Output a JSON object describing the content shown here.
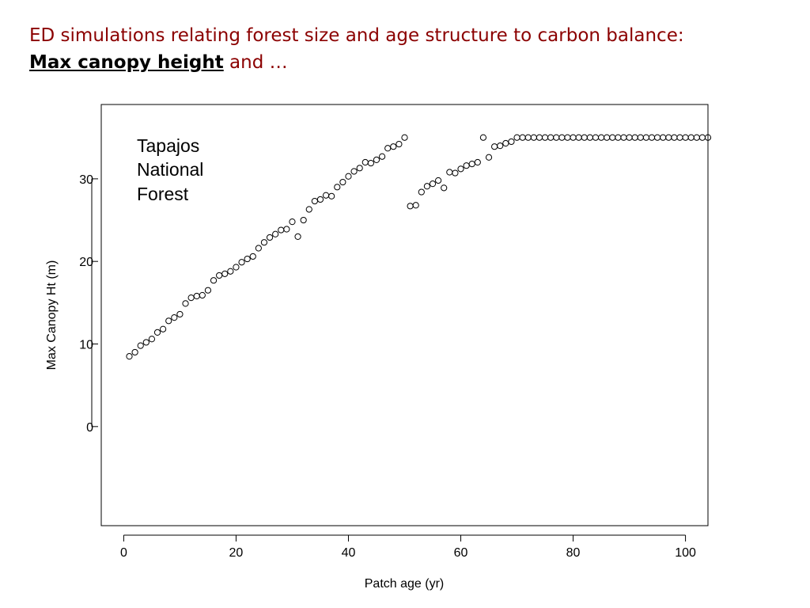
{
  "slide": {
    "title_line1": "ED simulations relating forest size and age structure to carbon balance:",
    "title_emph": "Max canopy height",
    "title_rest": " and …"
  },
  "chart_data": {
    "type": "scatter",
    "xlabel": "Patch age (yr)",
    "ylabel": "Max Canopy Ht (m)",
    "xlim": [
      -4,
      104
    ],
    "ylim": [
      -12,
      39
    ],
    "xticks": [
      0,
      20,
      40,
      60,
      80,
      100
    ],
    "yticks": [
      0,
      10,
      20,
      30
    ],
    "grid": false,
    "marker": "open-circle",
    "annotation": [
      "Tapajos",
      "National",
      "Forest"
    ],
    "series": [
      {
        "x": [
          1,
          2,
          3,
          4,
          5,
          6,
          7,
          8,
          9,
          10,
          11,
          12,
          13,
          14,
          15,
          16,
          17,
          18,
          19,
          20,
          21,
          22,
          23,
          24,
          25,
          26,
          27,
          28,
          29,
          30,
          31,
          32,
          33,
          34,
          35,
          36,
          37,
          38,
          39,
          40,
          41,
          42,
          43,
          44,
          45,
          46,
          47,
          48,
          49,
          50,
          51,
          52,
          53,
          54,
          55,
          56,
          57,
          58,
          59,
          60,
          61,
          62,
          63,
          64,
          65,
          66,
          67,
          68,
          69,
          70,
          71,
          72,
          73,
          74,
          75,
          76,
          77,
          78,
          79,
          80,
          81,
          82,
          83,
          84,
          85,
          86,
          87,
          88,
          89,
          90,
          91,
          92,
          93,
          94,
          95,
          96,
          97,
          98,
          99,
          100,
          101,
          102,
          103,
          104
        ],
        "y": [
          8.5,
          9.0,
          9.8,
          10.2,
          10.6,
          11.4,
          11.8,
          12.8,
          13.2,
          13.6,
          14.9,
          15.6,
          15.8,
          15.9,
          16.5,
          17.7,
          18.3,
          18.5,
          18.8,
          19.3,
          19.9,
          20.3,
          20.6,
          21.6,
          22.3,
          22.9,
          23.3,
          23.8,
          23.9,
          24.8,
          23.0,
          25.0,
          26.3,
          27.3,
          27.5,
          28.0,
          27.9,
          29.0,
          29.6,
          30.3,
          30.9,
          31.3,
          32.0,
          31.9,
          32.3,
          32.7,
          33.7,
          33.9,
          34.2,
          35.0,
          26.7,
          26.8,
          28.4,
          29.1,
          29.4,
          29.8,
          28.9,
          30.8,
          30.7,
          31.2,
          31.6,
          31.8,
          32.0,
          35.0,
          32.6,
          33.9,
          34.0,
          34.3,
          34.5,
          35.0,
          35.0,
          35.0,
          35.0,
          35.0,
          35.0,
          35.0,
          35.0,
          35.0,
          35.0,
          35.0,
          35.0,
          35.0,
          35.0,
          35.0,
          35.0,
          35.0,
          35.0,
          35.0,
          35.0,
          35.0,
          35.0,
          35.0,
          35.0,
          35.0,
          35.0,
          35.0,
          35.0,
          35.0,
          35.0,
          35.0,
          35.0,
          35.0,
          35.0,
          35.0
        ]
      }
    ]
  }
}
